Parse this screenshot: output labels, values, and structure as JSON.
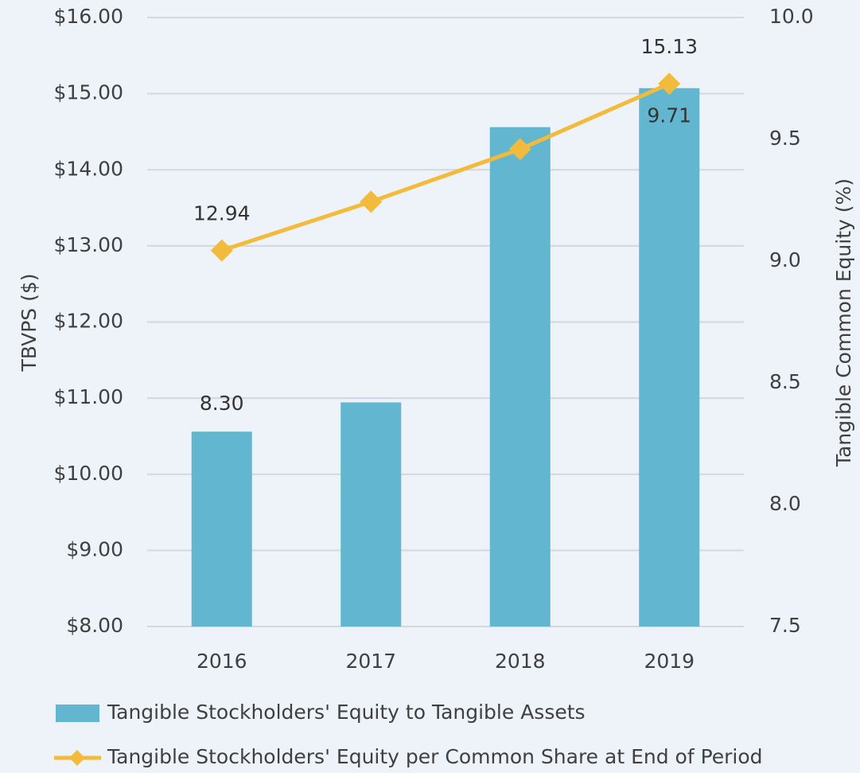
{
  "chart_data": {
    "type": "bar-line",
    "categories": [
      "2016",
      "2017",
      "2018",
      "2019"
    ],
    "ylabel": "TBVPS ($)",
    "y2label": "Tangible Common Equity (%)",
    "ylim": [
      8,
      16
    ],
    "yticks": [
      {
        "value": 8,
        "label": "$8.00"
      },
      {
        "value": 9,
        "label": "$9.00"
      },
      {
        "value": 10,
        "label": "$10.00"
      },
      {
        "value": 11,
        "label": "$11.00"
      },
      {
        "value": 12,
        "label": "$12.00"
      },
      {
        "value": 13,
        "label": "$13.00"
      },
      {
        "value": 14,
        "label": "$14.00"
      },
      {
        "value": 15,
        "label": "$15.00"
      },
      {
        "value": 16,
        "label": "$16.00"
      }
    ],
    "y2lim": [
      7.5,
      10
    ],
    "y2ticks": [
      7.5,
      {
        "value": 8,
        "label": "8.0"
      },
      8.5,
      {
        "value": 9,
        "label": "9.0"
      },
      9.5,
      {
        "value": 10,
        "label": "10.0"
      }
    ],
    "grid": true,
    "legend": "bottom",
    "series": [
      {
        "name": "Tangible Stockholders' Equity to Tangible Assets",
        "type": "bar",
        "axis": "y2",
        "color": "#62b6cf",
        "values": [
          8.3,
          8.42,
          9.55,
          9.71
        ],
        "value_labels": [
          "8.30",
          null,
          null,
          "9.71"
        ]
      },
      {
        "name": "Tangible Stockholders' Equity per Common Share at End of Period",
        "type": "line",
        "axis": "y",
        "color": "#f2bb3b",
        "values": [
          12.94,
          13.58,
          14.27,
          15.13
        ],
        "value_labels": [
          "12.94",
          null,
          null,
          "15.13"
        ]
      }
    ]
  }
}
